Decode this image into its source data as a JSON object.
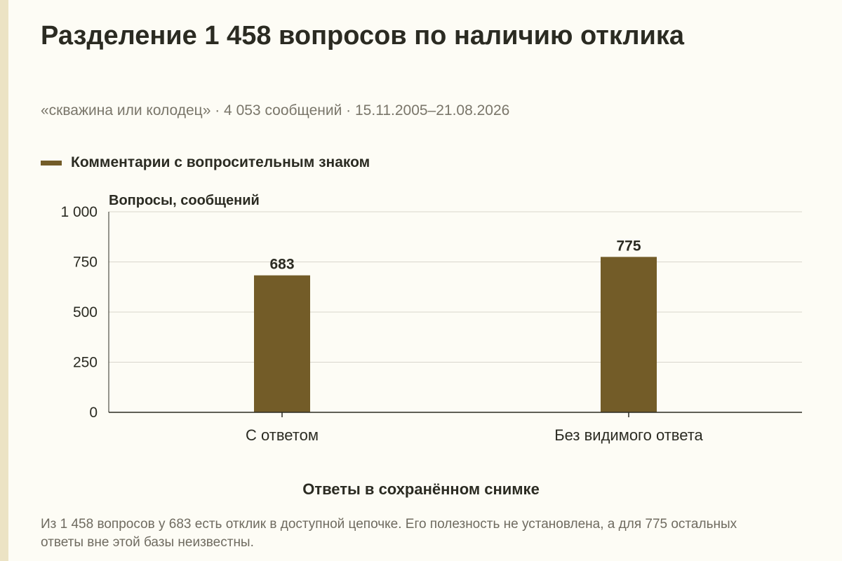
{
  "title": "Разделение 1 458 вопросов по наличию отклика",
  "subtitle": "«скважина или колодец» · 4 053 сообщений · 15.11.2005–21.08.2026",
  "note": "Из 1 458 вопросов у 683 есть отклик в доступной цепочке. Его полезность не установлена, а для 775 остальных ответы вне этой базы неизвестны.",
  "colors": {
    "bar": "#735c28",
    "grid": "#d9d6cc",
    "axis": "#2b2b22",
    "background": "#fdfcf5"
  },
  "chart_data": {
    "type": "bar",
    "title": "Разделение 1 458 вопросов по наличию отклика",
    "categories": [
      "С ответом",
      "Без видимого ответа"
    ],
    "series": [
      {
        "name": "Комментарии с вопросительным знаком",
        "values": [
          683,
          775
        ]
      }
    ],
    "data_labels": [
      "683",
      "775"
    ],
    "xlabel": "Ответы в сохранённом снимке",
    "ylabel": "Вопросы, сообщений",
    "ylim": [
      0,
      1000
    ],
    "yticks": [
      0,
      250,
      500,
      750,
      1000
    ],
    "ytick_labels": [
      "0",
      "250",
      "500",
      "750",
      "1 000"
    ],
    "grid": true,
    "legend": "top-left"
  }
}
